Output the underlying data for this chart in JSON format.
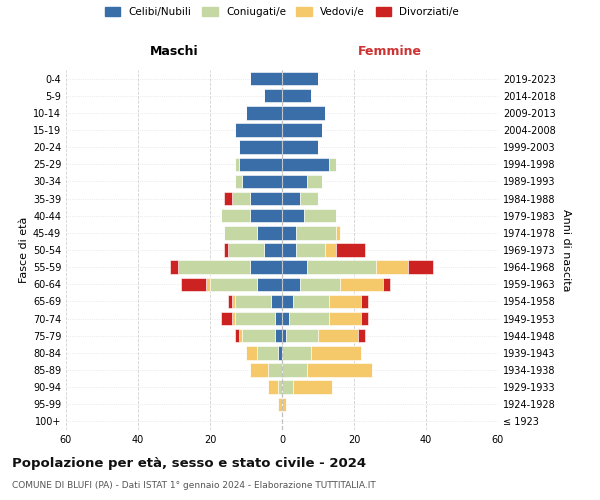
{
  "age_groups": [
    "100+",
    "95-99",
    "90-94",
    "85-89",
    "80-84",
    "75-79",
    "70-74",
    "65-69",
    "60-64",
    "55-59",
    "50-54",
    "45-49",
    "40-44",
    "35-39",
    "30-34",
    "25-29",
    "20-24",
    "15-19",
    "10-14",
    "5-9",
    "0-4"
  ],
  "birth_years": [
    "≤ 1923",
    "1924-1928",
    "1929-1933",
    "1934-1938",
    "1939-1943",
    "1944-1948",
    "1949-1953",
    "1954-1958",
    "1959-1963",
    "1964-1968",
    "1969-1973",
    "1974-1978",
    "1979-1983",
    "1984-1988",
    "1989-1993",
    "1994-1998",
    "1999-2003",
    "2004-2008",
    "2009-2013",
    "2014-2018",
    "2019-2023"
  ],
  "males": {
    "celibi": [
      0,
      0,
      0,
      0,
      1,
      2,
      2,
      3,
      7,
      9,
      5,
      7,
      9,
      9,
      11,
      12,
      12,
      13,
      10,
      5,
      9
    ],
    "coniugati": [
      0,
      0,
      1,
      4,
      6,
      9,
      11,
      10,
      13,
      20,
      10,
      9,
      8,
      5,
      2,
      1,
      0,
      0,
      0,
      0,
      0
    ],
    "vedovi": [
      0,
      1,
      3,
      5,
      3,
      1,
      1,
      1,
      1,
      0,
      0,
      0,
      0,
      0,
      0,
      0,
      0,
      0,
      0,
      0,
      0
    ],
    "divorziati": [
      0,
      0,
      0,
      0,
      0,
      1,
      3,
      1,
      7,
      2,
      1,
      0,
      0,
      2,
      0,
      0,
      0,
      0,
      0,
      0,
      0
    ]
  },
  "females": {
    "nubili": [
      0,
      0,
      0,
      0,
      0,
      1,
      2,
      3,
      5,
      7,
      4,
      4,
      6,
      5,
      7,
      13,
      10,
      11,
      12,
      8,
      10
    ],
    "coniugate": [
      0,
      0,
      3,
      7,
      8,
      9,
      11,
      10,
      11,
      19,
      8,
      11,
      9,
      5,
      4,
      2,
      0,
      0,
      0,
      0,
      0
    ],
    "vedove": [
      0,
      1,
      11,
      18,
      14,
      11,
      9,
      9,
      12,
      9,
      3,
      1,
      0,
      0,
      0,
      0,
      0,
      0,
      0,
      0,
      0
    ],
    "divorziate": [
      0,
      0,
      0,
      0,
      0,
      2,
      2,
      2,
      2,
      7,
      8,
      0,
      0,
      0,
      0,
      0,
      0,
      0,
      0,
      0,
      0
    ]
  },
  "colors": {
    "celibi_nubili": "#3a6ea8",
    "coniugati": "#c5d8a4",
    "vedovi": "#f5c96a",
    "divorziati": "#cc2222"
  },
  "xlim": 60,
  "title": "Popolazione per età, sesso e stato civile - 2024",
  "subtitle": "COMUNE DI BLUFI (PA) - Dati ISTAT 1° gennaio 2024 - Elaborazione TUTTITALIA.IT",
  "ylabel_left": "Fasce di età",
  "ylabel_right": "Anni di nascita",
  "xlabel_left": "Maschi",
  "xlabel_right": "Femmine",
  "legend_labels": [
    "Celibi/Nubili",
    "Coniugati/e",
    "Vedovi/e",
    "Divorziati/e"
  ],
  "bg_color": "#ffffff",
  "grid_color": "#cccccc"
}
